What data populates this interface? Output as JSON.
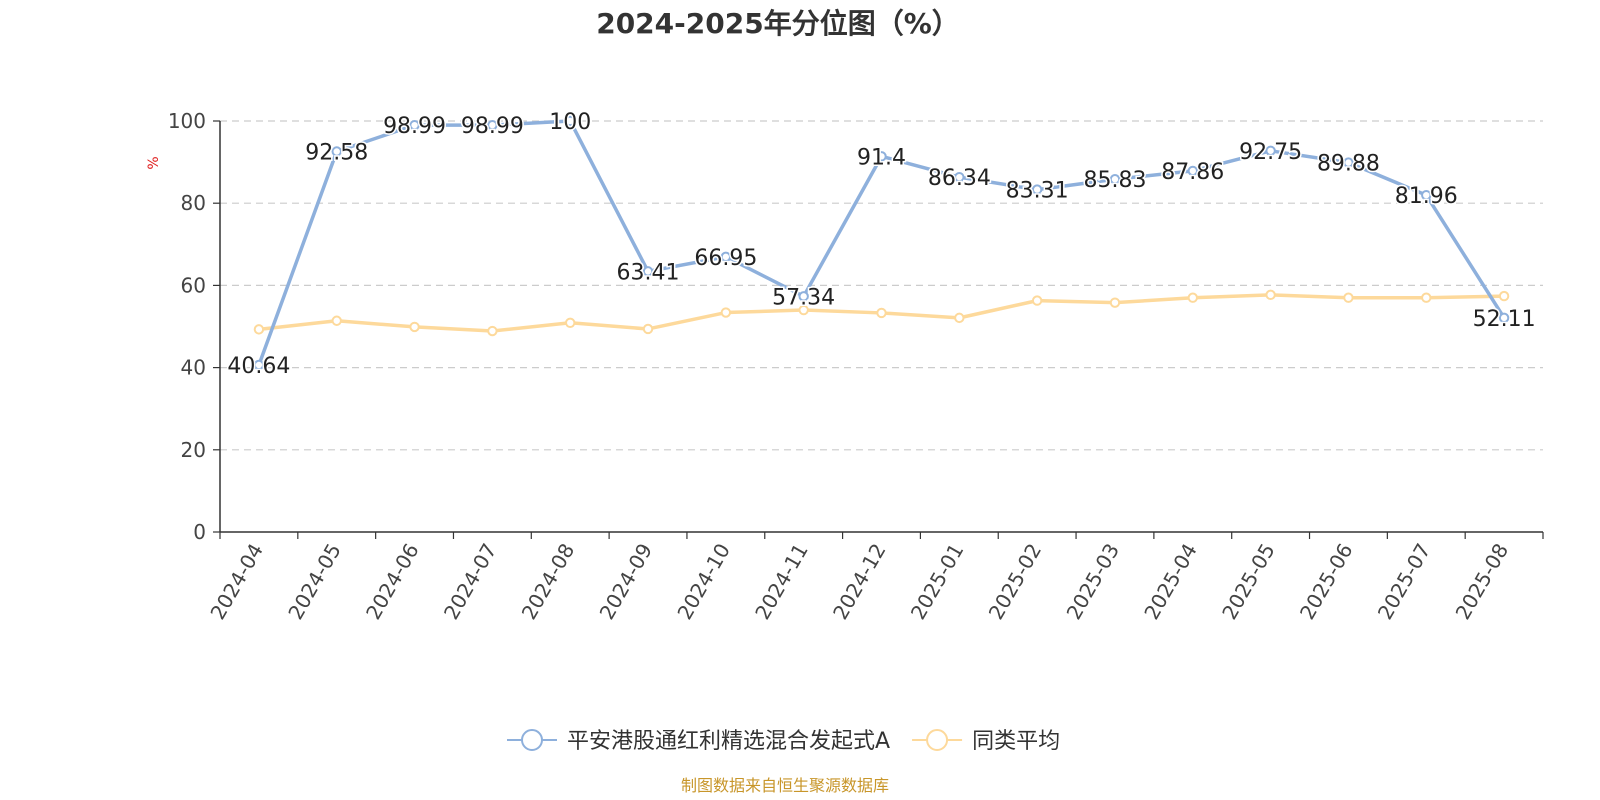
{
  "chart_data": {
    "type": "line",
    "title": "2024-2025年分位图（%）",
    "ylabel": "%",
    "xlabel": "",
    "categories": [
      "2024-04",
      "2024-05",
      "2024-06",
      "2024-07",
      "2024-08",
      "2024-09",
      "2024-10",
      "2024-11",
      "2024-12",
      "2025-01",
      "2025-02",
      "2025-03",
      "2025-04",
      "2025-05",
      "2025-06",
      "2025-07",
      "2025-08"
    ],
    "ylim": [
      0,
      100
    ],
    "yticks": [
      0,
      20,
      40,
      60,
      80,
      100
    ],
    "grid": true,
    "legend_position": "bottom",
    "series": [
      {
        "name": "平安港股通红利精选混合发起式A",
        "color": "#8eb0dc",
        "show_labels": true,
        "values": [
          40.64,
          92.58,
          98.99,
          98.99,
          100,
          63.41,
          66.95,
          57.34,
          91.4,
          86.34,
          83.31,
          85.83,
          87.86,
          92.75,
          89.88,
          81.96,
          52.11
        ],
        "labels": [
          "40.64",
          "92.58",
          "98.99",
          "98.99",
          "100",
          "63.41",
          "66.95",
          "57.34",
          "91.4",
          "86.34",
          "83.31",
          "85.83",
          "87.86",
          "92.75",
          "89.88",
          "81.96",
          "52.11"
        ]
      },
      {
        "name": "同类平均",
        "color": "#fdd99b",
        "show_labels": false,
        "values": [
          49.3,
          51.4,
          49.9,
          48.9,
          50.9,
          49.4,
          53.4,
          54.0,
          53.3,
          52.1,
          56.3,
          55.8,
          57.0,
          57.7,
          57.0,
          57.0,
          57.4
        ]
      }
    ]
  },
  "footer": {
    "source": "制图数据来自恒生聚源数据库",
    "source_color": "#c8962a"
  }
}
